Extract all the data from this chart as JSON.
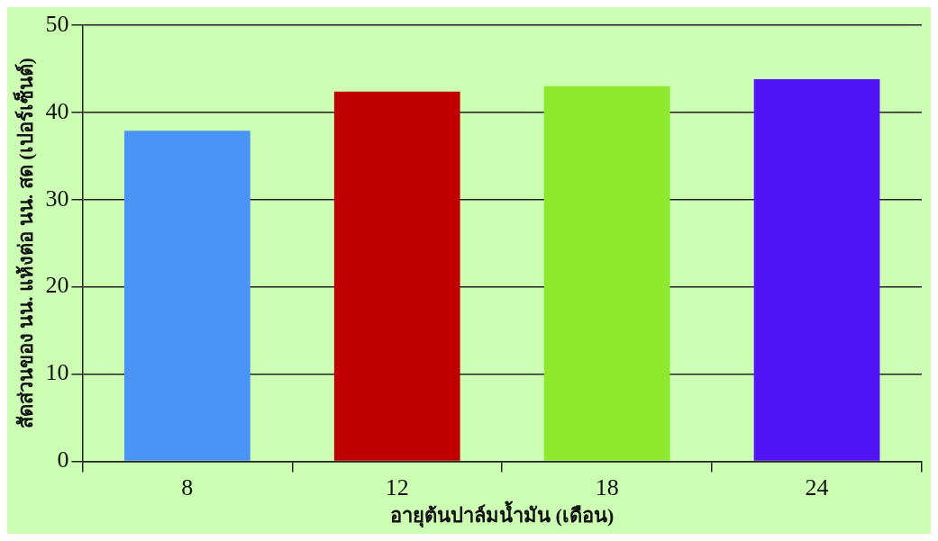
{
  "chart_data": {
    "type": "bar",
    "xlabel": "อายุต้นปาล์มน้ำมัน (เดือน)",
    "ylabel": "สัดส่วนของ นน. แห้งต่อ นน. สด (เปอร์เซ็นต์)",
    "categories": [
      "8",
      "12",
      "18",
      "24"
    ],
    "values": [
      37.9,
      42.4,
      43.0,
      43.8
    ],
    "colors": [
      "#4a94f7",
      "#c00000",
      "#8ee82e",
      "#5014f7"
    ],
    "ylim": [
      0,
      50
    ],
    "yticks": [
      0,
      10,
      20,
      30,
      40,
      50
    ],
    "grid": "y",
    "legend": false
  }
}
